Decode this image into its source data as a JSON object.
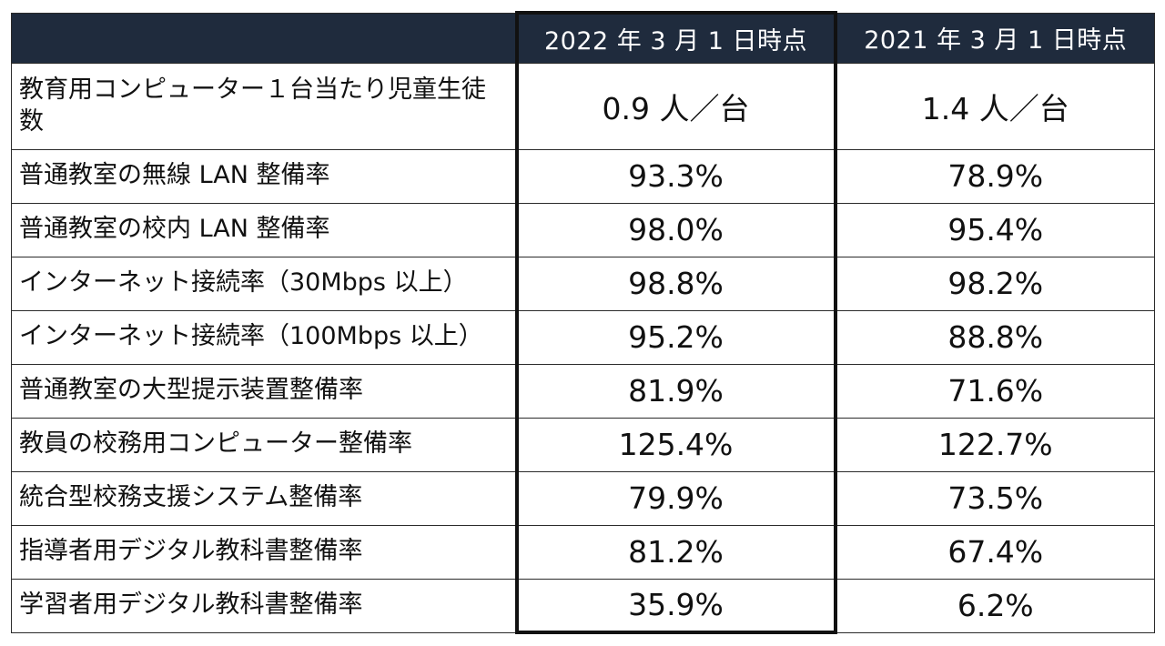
{
  "table": {
    "headers": [
      "",
      "2022 年 3 月 1 日時点",
      "2021 年 3 月 1 日時点"
    ],
    "rows": [
      {
        "label": "教育用コンピューター１台当たり児童生徒数",
        "v2022": "0.9 人／台",
        "v2021": "1.4 人／台"
      },
      {
        "label": "普通教室の無線 LAN 整備率",
        "v2022": "93.3%",
        "v2021": "78.9%"
      },
      {
        "label": "普通教室の校内 LAN 整備率",
        "v2022": "98.0%",
        "v2021": "95.4%"
      },
      {
        "label": "インターネット接続率（30Mbps 以上）",
        "v2022": "98.8%",
        "v2021": "98.2%"
      },
      {
        "label": "インターネット接続率（100Mbps 以上）",
        "v2022": "95.2%",
        "v2021": "88.8%"
      },
      {
        "label": "普通教室の大型提示装置整備率",
        "v2022": "81.9%",
        "v2021": "71.6%"
      },
      {
        "label": "教員の校務用コンピューター整備率",
        "v2022": "125.4%",
        "v2021": "122.7%"
      },
      {
        "label": "統合型校務支援システム整備率",
        "v2022": "79.9%",
        "v2021": "73.5%"
      },
      {
        "label": "指導者用デジタル教科書整備率",
        "v2022": "81.2%",
        "v2021": "67.4%"
      },
      {
        "label": "学習者用デジタル教科書整備率",
        "v2022": "35.9%",
        "v2021": "6.2%"
      }
    ],
    "colors": {
      "header_bg": "#1f2b3d",
      "header_text": "#ffffff",
      "border": "#2a2a2a",
      "highlight_border": "#111111"
    }
  }
}
